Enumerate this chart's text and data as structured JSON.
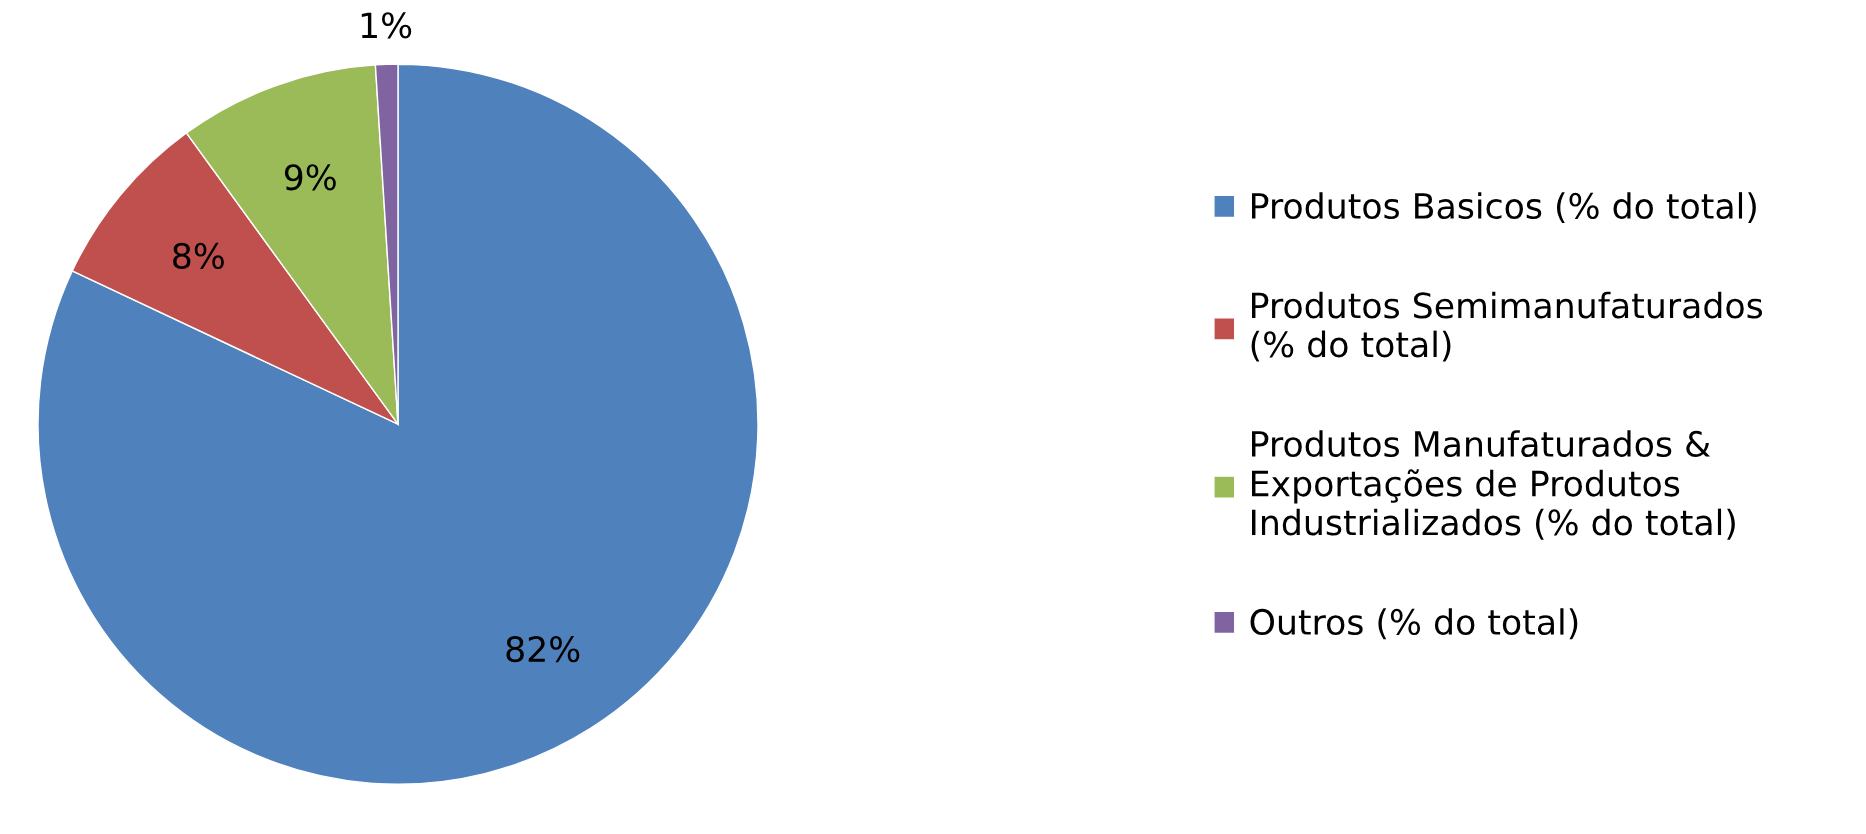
{
  "chart_data": {
    "type": "pie",
    "categories": [
      "Produtos Basicos (% do total)",
      "Produtos Semimanufaturados\n(% do total)",
      "Produtos Manufaturados &\nExportações de Produtos\nIndustrializados (% do total)",
      "Outros (% do total)"
    ],
    "values": [
      82,
      8,
      9,
      1
    ],
    "colors": [
      "#4f81bd",
      "#c0504d",
      "#9bbb59",
      "#8064a2"
    ],
    "value_labels": [
      "82%",
      "8%",
      "9%",
      "1%"
    ],
    "legend": "right"
  }
}
